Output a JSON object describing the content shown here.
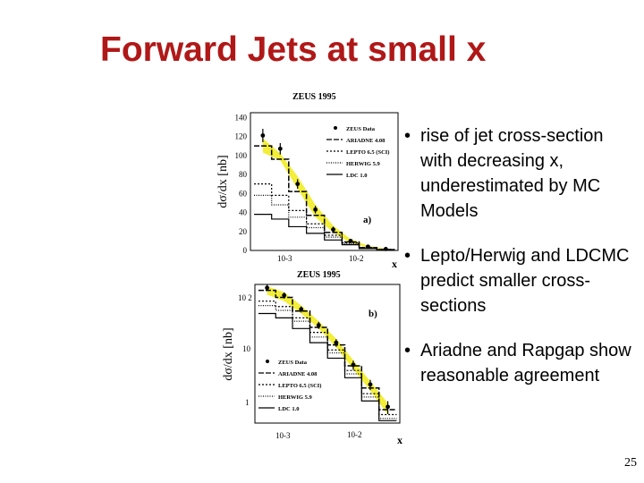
{
  "slide": {
    "title": "Forward Jets at small x",
    "page_number": "25",
    "bullet_symbol": "•",
    "bullets": [
      "rise of jet cross-section with decreasing x, underestimated by MC Models",
      "Lepto/Herwig and LDCMC predict smaller cross-sections",
      "Ariadne and Rapgap show reasonable agreement"
    ]
  },
  "colors": {
    "title": "#b01818",
    "uncertainty_band": "#f2ee3a"
  },
  "chart_data": [
    {
      "type": "line",
      "title": "ZEUS 1995",
      "panel_label": "a)",
      "xlabel": "x",
      "ylabel": "dσ/dx [nb]",
      "x_scale": "log",
      "x_ticks": [
        "10-3",
        "10-2"
      ],
      "y_ticks": [
        "0",
        "20",
        "40",
        "60",
        "80",
        "100",
        "120",
        "140"
      ],
      "ylim": [
        0,
        145
      ],
      "legend": [
        "ZEUS Data",
        "ARIADNE 4.08",
        "LEPTO 6.5 (SCI)",
        "HERWIG 5.9",
        "LDC 1.0"
      ],
      "legend_position": "top-right",
      "x_bins": [
        0.00045,
        0.0008,
        0.0014,
        0.0025,
        0.0045,
        0.008,
        0.014,
        0.025,
        0.045
      ],
      "data": {
        "x": [
          0.0006,
          0.00106,
          0.00187,
          0.00335,
          0.006,
          0.0106,
          0.0187,
          0.0335
        ],
        "y": [
          121,
          107,
          70,
          43,
          22,
          10,
          4,
          1.5
        ],
        "err": [
          7,
          6,
          5,
          4,
          3,
          2,
          1,
          0.7
        ]
      },
      "band": {
        "low": [
          103,
          95,
          65,
          35,
          19,
          8,
          3,
          1
        ],
        "high": [
          118,
          102,
          78,
          48,
          26,
          12,
          5,
          2
        ]
      },
      "series": [
        {
          "name": "ARIADNE 4.08",
          "values": [
            110,
            96,
            62,
            37,
            19,
            9,
            3,
            1
          ]
        },
        {
          "name": "LEPTO 6.5 (SCI)",
          "values": [
            70,
            58,
            42,
            28,
            16,
            8,
            3,
            1
          ]
        },
        {
          "name": "HERWIG 5.9",
          "values": [
            58,
            48,
            35,
            24,
            14,
            7,
            2.5,
            1
          ]
        },
        {
          "name": "LDC 1.0",
          "values": [
            38,
            33,
            25,
            18,
            11,
            6,
            2,
            0.8
          ]
        }
      ]
    },
    {
      "type": "line",
      "title": "ZEUS 1995",
      "panel_label": "b)",
      "xlabel": "x",
      "ylabel": "dσ/dx [nb]",
      "x_scale": "log",
      "y_scale": "log",
      "x_ticks": [
        "10-3",
        "10-2"
      ],
      "y_ticks": [
        "10 2",
        "10",
        "1"
      ],
      "ylim": [
        0.5,
        120
      ],
      "legend": [
        "ZEUS Data",
        "ARIADNE 4.08",
        "LEPTO 6.5 (SCI)",
        "HERWIG 5.9",
        "LDC 1.0"
      ],
      "legend_position": "bottom-left",
      "x_bins": [
        0.00045,
        0.0008,
        0.0014,
        0.0025,
        0.0045,
        0.008,
        0.014,
        0.025,
        0.045
      ],
      "data": {
        "x": [
          0.0006,
          0.00106,
          0.00187,
          0.00335,
          0.006,
          0.0106,
          0.0187,
          0.0335
        ],
        "y": [
          105,
          78,
          45,
          24,
          12,
          5,
          2.3,
          0.95
        ],
        "err_rel": [
          0.12,
          0.12,
          0.12,
          0.14,
          0.15,
          0.18,
          0.2,
          0.25
        ]
      },
      "band": {
        "low": [
          80,
          62,
          38,
          21,
          10,
          4.2,
          1.8,
          0.7
        ],
        "high": [
          112,
          88,
          52,
          28,
          14,
          6,
          2.6,
          1.1
        ]
      },
      "series": [
        {
          "name": "ARIADNE 4.08",
          "values": [
            95,
            72,
            42,
            22,
            11,
            4.8,
            2,
            0.85
          ]
        },
        {
          "name": "LEPTO 6.5 (SCI)",
          "values": [
            62,
            50,
            32,
            18,
            9,
            4,
            1.6,
            0.7
          ]
        },
        {
          "name": "HERWIG 5.9",
          "values": [
            52,
            43,
            28,
            15,
            8,
            3.5,
            1.4,
            0.6
          ]
        },
        {
          "name": "LDC 1.0",
          "values": [
            38,
            32,
            21,
            12,
            6.5,
            3,
            1.2,
            0.55
          ]
        }
      ]
    }
  ]
}
